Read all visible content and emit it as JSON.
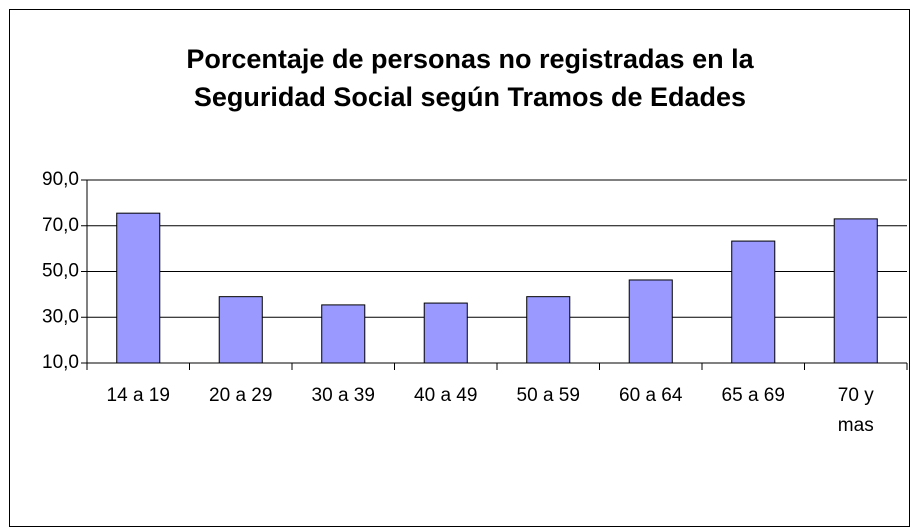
{
  "chart_data": {
    "type": "bar",
    "title": "Porcentaje de personas no registradas en la Seguridad Social según Tramos de Edades",
    "categories": [
      "14 a 19",
      "20 a 29",
      "30 a 39",
      "40 a 49",
      "50 a 59",
      "60 a 64",
      "65 a 69",
      "70 y mas"
    ],
    "values": [
      75.5,
      39,
      35.4,
      36.2,
      39,
      46.3,
      63.3,
      73
    ],
    "color": "#9999ff",
    "ylim": [
      10,
      90
    ],
    "yticks": [
      {
        "value": 10,
        "label": "10,0"
      },
      {
        "value": 30,
        "label": "30,0"
      },
      {
        "value": 50,
        "label": "50,0"
      },
      {
        "value": 70,
        "label": "70,0"
      },
      {
        "value": 90,
        "label": "90,0"
      }
    ],
    "grid": true
  }
}
